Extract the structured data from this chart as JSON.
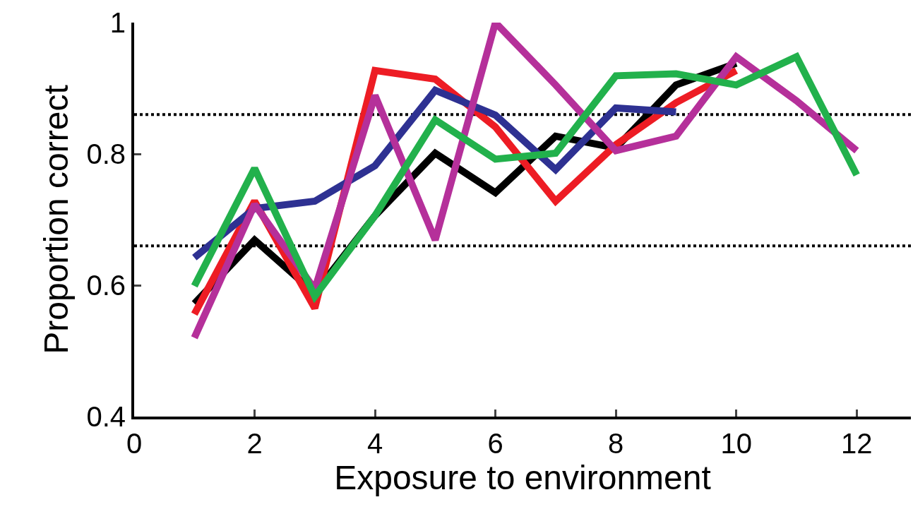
{
  "chart_data": {
    "type": "line",
    "xlabel": "Exposure to environment",
    "ylabel": "Proportion correct",
    "xlim": [
      0,
      12.9
    ],
    "xticks": [
      0,
      2,
      4,
      6,
      8,
      10,
      12
    ],
    "ylim": [
      0.4,
      1
    ],
    "yticks": [
      0.4,
      0.6,
      0.8,
      1
    ],
    "grid": false,
    "marker": "none",
    "line_style": "solid",
    "series": [
      {
        "color": "#000000",
        "x": [
          1,
          2,
          3,
          4,
          5,
          6,
          7,
          8,
          9,
          10
        ],
        "values": [
          0.572,
          0.669,
          0.588,
          0.706,
          0.801,
          0.741,
          0.827,
          0.809,
          0.905,
          0.938
        ]
      },
      {
        "color": "#ed1c24",
        "x": [
          1,
          2,
          3,
          4,
          5,
          6,
          7,
          8,
          9,
          10
        ],
        "values": [
          0.556,
          0.728,
          0.565,
          0.927,
          0.914,
          0.841,
          0.728,
          0.814,
          0.878,
          0.927
        ]
      },
      {
        "color": "#2e3192",
        "x": [
          1,
          2,
          3,
          4,
          5,
          6,
          7,
          8,
          9
        ],
        "values": [
          0.642,
          0.717,
          0.728,
          0.782,
          0.897,
          0.859,
          0.776,
          0.87,
          0.864
        ]
      },
      {
        "color": "#b5309a",
        "x": [
          1,
          2,
          3,
          4,
          5,
          6,
          7,
          8,
          9,
          10,
          11,
          12
        ],
        "values": [
          0.52,
          0.723,
          0.594,
          0.889,
          0.669,
          1.0,
          0.905,
          0.805,
          0.827,
          0.948,
          0.881,
          0.805
        ]
      },
      {
        "color": "#22b14c",
        "x": [
          1,
          2,
          3,
          4,
          5,
          6,
          7,
          8,
          9,
          10,
          11,
          12
        ],
        "values": [
          0.599,
          0.778,
          0.583,
          0.706,
          0.852,
          0.792,
          0.801,
          0.919,
          0.922,
          0.905,
          0.948,
          0.768
        ]
      }
    ],
    "ref_lines": [
      {
        "axis": "y",
        "value": 0.86,
        "color": "#000000",
        "line_style": "dotted"
      },
      {
        "axis": "y",
        "value": 0.66,
        "color": "#000000",
        "line_style": "dotted"
      }
    ]
  }
}
